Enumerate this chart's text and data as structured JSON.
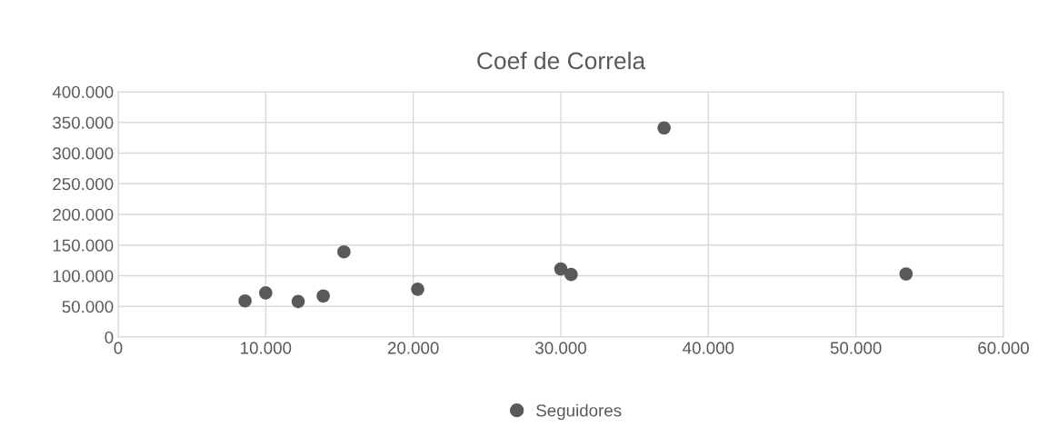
{
  "chart_data": {
    "type": "scatter",
    "title": "Coef de Correla",
    "series": [
      {
        "name": "Seguidores",
        "color": "#595959",
        "x": [
          8600,
          10000,
          12200,
          13900,
          15300,
          20300,
          30000,
          30700,
          37000,
          53400
        ],
        "values": [
          59000,
          72000,
          58000,
          67000,
          139000,
          78000,
          111000,
          102000,
          341000,
          103000
        ]
      }
    ],
    "xlim": [
      0,
      60000
    ],
    "ylim": [
      0,
      400000
    ],
    "xticks": [
      0,
      {
        "value": 10000,
        "label": "10.000"
      },
      {
        "value": 20000,
        "label": "20.000"
      },
      {
        "value": 30000,
        "label": "30.000"
      },
      {
        "value": 40000,
        "label": "40.000"
      },
      {
        "value": 50000,
        "label": "50.000"
      },
      {
        "value": 60000,
        "label": "60.000"
      }
    ],
    "yticks": [
      0,
      {
        "value": 50000,
        "label": "50.000"
      },
      {
        "value": 100000,
        "label": "100.000"
      },
      {
        "value": 150000,
        "label": "150.000"
      },
      {
        "value": 200000,
        "label": "200.000"
      },
      {
        "value": 250000,
        "label": "250.000"
      },
      {
        "value": 300000,
        "label": "300.000"
      },
      {
        "value": 350000,
        "label": "350.000"
      },
      {
        "value": 400000,
        "label": "400.000"
      }
    ],
    "grid": true,
    "legend": "bottom",
    "marker": "circle"
  }
}
